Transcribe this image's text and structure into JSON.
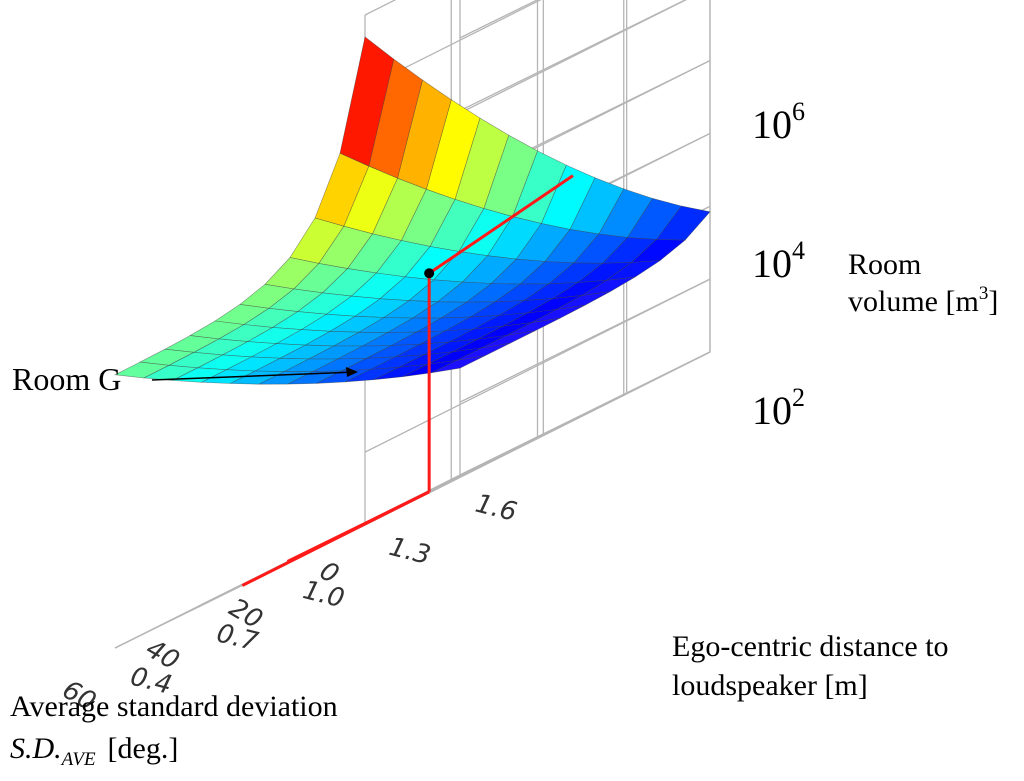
{
  "chart_data": {
    "type": "surface3d",
    "x_axis": {
      "label_line1": "Average standard deviation",
      "label_symbol": "S.D.",
      "label_subscript": "AVE",
      "label_unit": "[deg.]",
      "ticks": [
        "0",
        "20",
        "40",
        "60"
      ],
      "range": [
        0,
        60
      ]
    },
    "y_axis": {
      "label_line1": "Ego-centric distance to",
      "label_line2": "loudspeaker [m]",
      "ticks": [
        "0.4",
        "0.7",
        "1.0",
        "1.3",
        "1.6"
      ],
      "range": [
        0.4,
        1.6
      ]
    },
    "z_axis": {
      "label_line1": "Room",
      "label_line2_text": "volume [m",
      "label_line2_sup": "3",
      "label_line2_close": "]",
      "tick_base": "10",
      "tick_exponents": [
        "2",
        "4",
        "6"
      ],
      "scale": "log10",
      "range_log10": [
        0,
        7
      ]
    },
    "surface": {
      "x_grid_count": 10,
      "y_grid_count": 12,
      "colormap": "jet",
      "description": "log10 room volume as function of S.D.AVE and distance"
    },
    "annotation": {
      "label": "Room G",
      "sd_ave": 26,
      "distance_m": 1.0,
      "log10_volume": 3.0,
      "marker_color": "#ff1a1a"
    }
  }
}
